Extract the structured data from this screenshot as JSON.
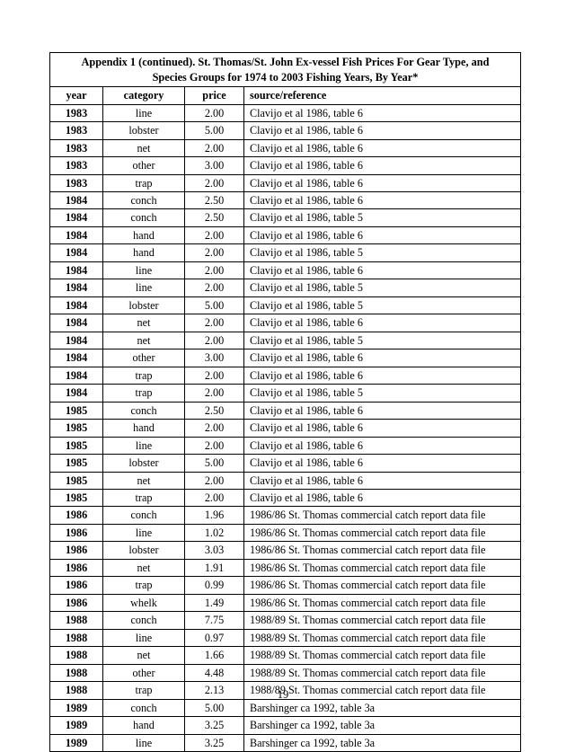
{
  "title_line1": "Appendix 1 (continued).  St. Thomas/St. John Ex-vessel Fish Prices For Gear Type, and",
  "title_line2": "Species Groups for 1974 to 2003 Fishing Years, By Year*",
  "columns": {
    "year": "year",
    "category": "category",
    "price": "price",
    "source": "source/reference"
  },
  "rows": [
    {
      "year": "1983",
      "category": "line",
      "price": "2.00",
      "source": "Clavijo et al 1986, table 6"
    },
    {
      "year": "1983",
      "category": "lobster",
      "price": "5.00",
      "source": "Clavijo et al 1986, table 6"
    },
    {
      "year": "1983",
      "category": "net",
      "price": "2.00",
      "source": "Clavijo et al 1986, table 6"
    },
    {
      "year": "1983",
      "category": "other",
      "price": "3.00",
      "source": "Clavijo et al 1986, table 6"
    },
    {
      "year": "1983",
      "category": "trap",
      "price": "2.00",
      "source": "Clavijo et al 1986, table 6"
    },
    {
      "year": "1984",
      "category": "conch",
      "price": "2.50",
      "source": "Clavijo et al 1986, table 6"
    },
    {
      "year": "1984",
      "category": "conch",
      "price": "2.50",
      "source": "Clavijo et al 1986, table 5"
    },
    {
      "year": "1984",
      "category": "hand",
      "price": "2.00",
      "source": "Clavijo et al 1986, table 6"
    },
    {
      "year": "1984",
      "category": "hand",
      "price": "2.00",
      "source": "Clavijo et al 1986, table 5"
    },
    {
      "year": "1984",
      "category": "line",
      "price": "2.00",
      "source": "Clavijo et al 1986, table 6"
    },
    {
      "year": "1984",
      "category": "line",
      "price": "2.00",
      "source": "Clavijo et al 1986, table 5"
    },
    {
      "year": "1984",
      "category": "lobster",
      "price": "5.00",
      "source": "Clavijo et al 1986, table 5"
    },
    {
      "year": "1984",
      "category": "net",
      "price": "2.00",
      "source": "Clavijo et al 1986, table 6"
    },
    {
      "year": "1984",
      "category": "net",
      "price": "2.00",
      "source": "Clavijo et al 1986, table 5"
    },
    {
      "year": "1984",
      "category": "other",
      "price": "3.00",
      "source": "Clavijo et al 1986, table 6"
    },
    {
      "year": "1984",
      "category": "trap",
      "price": "2.00",
      "source": "Clavijo et al 1986, table 6"
    },
    {
      "year": "1984",
      "category": "trap",
      "price": "2.00",
      "source": "Clavijo et al 1986, table 5"
    },
    {
      "year": "1985",
      "category": "conch",
      "price": "2.50",
      "source": "Clavijo et al 1986, table 6"
    },
    {
      "year": "1985",
      "category": "hand",
      "price": "2.00",
      "source": "Clavijo et al 1986, table 6"
    },
    {
      "year": "1985",
      "category": "line",
      "price": "2.00",
      "source": "Clavijo et al 1986, table 6"
    },
    {
      "year": "1985",
      "category": "lobster",
      "price": "5.00",
      "source": "Clavijo et al 1986, table 6"
    },
    {
      "year": "1985",
      "category": "net",
      "price": "2.00",
      "source": "Clavijo et al 1986, table 6"
    },
    {
      "year": "1985",
      "category": "trap",
      "price": "2.00",
      "source": "Clavijo et al 1986, table 6"
    },
    {
      "year": "1986",
      "category": "conch",
      "price": "1.96",
      "source": "1986/86 St. Thomas commercial catch report data file"
    },
    {
      "year": "1986",
      "category": "line",
      "price": "1.02",
      "source": "1986/86 St. Thomas commercial catch report data file"
    },
    {
      "year": "1986",
      "category": "lobster",
      "price": "3.03",
      "source": "1986/86 St. Thomas commercial catch report data file"
    },
    {
      "year": "1986",
      "category": "net",
      "price": "1.91",
      "source": "1986/86 St. Thomas commercial catch report data file"
    },
    {
      "year": "1986",
      "category": "trap",
      "price": "0.99",
      "source": "1986/86 St. Thomas commercial catch report data file"
    },
    {
      "year": "1986",
      "category": "whelk",
      "price": "1.49",
      "source": "1986/86 St. Thomas commercial catch report data file"
    },
    {
      "year": "1988",
      "category": "conch",
      "price": "7.75",
      "source": "1988/89 St. Thomas commercial catch report data file"
    },
    {
      "year": "1988",
      "category": "line",
      "price": "0.97",
      "source": "1988/89 St. Thomas commercial catch report data file"
    },
    {
      "year": "1988",
      "category": "net",
      "price": "1.66",
      "source": "1988/89 St. Thomas commercial catch report data file"
    },
    {
      "year": "1988",
      "category": "other",
      "price": "4.48",
      "source": "1988/89 St. Thomas commercial catch report data file"
    },
    {
      "year": "1988",
      "category": "trap",
      "price": "2.13",
      "source": "1988/89 St. Thomas commercial catch report data file"
    },
    {
      "year": "1989",
      "category": "conch",
      "price": "5.00",
      "source": "Barshinger ca 1992, table 3a"
    },
    {
      "year": "1989",
      "category": "hand",
      "price": "3.25",
      "source": "Barshinger ca 1992, table 3a"
    },
    {
      "year": "1989",
      "category": "line",
      "price": "3.25",
      "source": "Barshinger ca 1992, table 3a"
    }
  ],
  "page_number": "19"
}
